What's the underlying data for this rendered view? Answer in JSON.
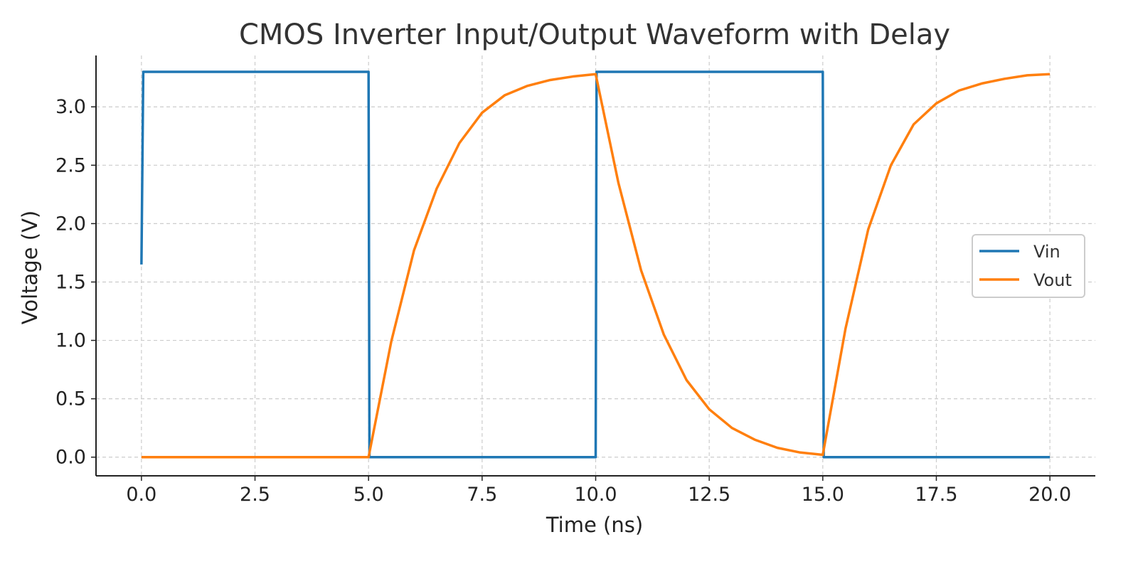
{
  "chart_data": {
    "type": "line",
    "title": "CMOS Inverter Input/Output Waveform with Delay",
    "xlabel": "Time (ns)",
    "ylabel": "Voltage (V)",
    "xlim": [
      -1.0,
      21.0
    ],
    "ylim": [
      -0.16,
      3.44
    ],
    "xticks": [
      0.0,
      2.5,
      5.0,
      7.5,
      10.0,
      12.5,
      15.0,
      17.5,
      20.0
    ],
    "xtick_labels": [
      "0.0",
      "2.5",
      "5.0",
      "7.5",
      "10.0",
      "12.5",
      "15.0",
      "17.5",
      "20.0"
    ],
    "yticks": [
      0.0,
      0.5,
      1.0,
      1.5,
      2.0,
      2.5,
      3.0
    ],
    "ytick_labels": [
      "0.0",
      "0.5",
      "1.0",
      "1.5",
      "2.0",
      "2.5",
      "3.0"
    ],
    "grid": true,
    "legend_position": "center-right",
    "series": [
      {
        "name": "Vin",
        "color": "#1f77b4",
        "points": [
          [
            0.0,
            1.65
          ],
          [
            0.04,
            3.3
          ],
          [
            5.0,
            3.3
          ],
          [
            5.02,
            0.0
          ],
          [
            10.0,
            0.0
          ],
          [
            10.02,
            3.3
          ],
          [
            15.0,
            3.3
          ],
          [
            15.02,
            0.0
          ],
          [
            20.0,
            0.0
          ]
        ]
      },
      {
        "name": "Vout",
        "color": "#ff7f0e",
        "points": [
          [
            0.0,
            0.0
          ],
          [
            5.0,
            0.0
          ],
          [
            5.5,
            0.99
          ],
          [
            6.0,
            1.77
          ],
          [
            6.5,
            2.3
          ],
          [
            7.0,
            2.69
          ],
          [
            7.5,
            2.95
          ],
          [
            8.0,
            3.1
          ],
          [
            8.5,
            3.18
          ],
          [
            9.0,
            3.23
          ],
          [
            9.5,
            3.26
          ],
          [
            10.0,
            3.28
          ],
          [
            10.5,
            2.35
          ],
          [
            11.0,
            1.6
          ],
          [
            11.5,
            1.05
          ],
          [
            12.0,
            0.66
          ],
          [
            12.5,
            0.41
          ],
          [
            13.0,
            0.25
          ],
          [
            13.5,
            0.15
          ],
          [
            14.0,
            0.08
          ],
          [
            14.5,
            0.04
          ],
          [
            15.0,
            0.02
          ],
          [
            15.5,
            1.1
          ],
          [
            16.0,
            1.95
          ],
          [
            16.5,
            2.5
          ],
          [
            17.0,
            2.85
          ],
          [
            17.5,
            3.03
          ],
          [
            18.0,
            3.14
          ],
          [
            18.5,
            3.2
          ],
          [
            19.0,
            3.24
          ],
          [
            19.5,
            3.27
          ],
          [
            20.0,
            3.28
          ]
        ]
      }
    ]
  }
}
